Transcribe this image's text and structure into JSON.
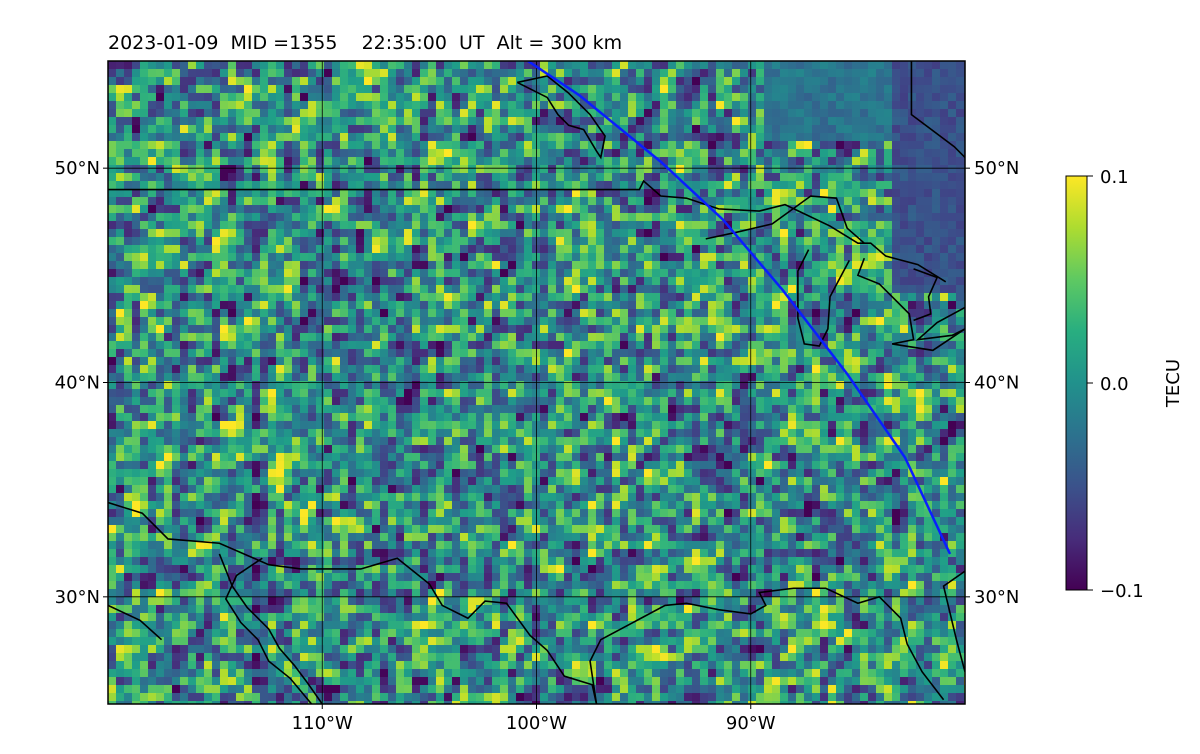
{
  "title": "2023-01-09  MID =1355    22:35:00  UT  Alt = 300 km",
  "map": {
    "lon_range": [
      -120,
      -80
    ],
    "lat_range": [
      25,
      55
    ],
    "grid": true,
    "colormap": "viridis",
    "coastline_color": "#000000",
    "track_color": "#0a1eff",
    "lon_ticks": [
      {
        "value": -110,
        "label": "110°W"
      },
      {
        "value": -100,
        "label": "100°W"
      },
      {
        "value": -90,
        "label": "90°W"
      }
    ],
    "lat_ticks": [
      {
        "value": 50,
        "label": "50°N"
      },
      {
        "value": 40,
        "label": "40°N"
      },
      {
        "value": 30,
        "label": "30°N"
      }
    ],
    "satellite_track": [
      [
        -100.4,
        55.0
      ],
      [
        -98.0,
        53.4
      ],
      [
        -94.2,
        50.3
      ],
      [
        -91.3,
        47.6
      ],
      [
        -88.5,
        44.3
      ],
      [
        -85.5,
        40.4
      ],
      [
        -82.8,
        36.5
      ],
      [
        -80.7,
        32.0
      ]
    ],
    "coastlines": [
      [
        [
          -120.0,
          49.0
        ],
        [
          -95.2,
          49.0
        ],
        [
          -95.0,
          49.4
        ],
        [
          -94.2,
          48.7
        ],
        [
          -93.0,
          48.6
        ],
        [
          -91.5,
          48.1
        ],
        [
          -89.6,
          48.0
        ],
        [
          -88.4,
          48.3
        ],
        [
          -86.3,
          47.3
        ],
        [
          -85.0,
          46.5
        ],
        [
          -84.4,
          46.5
        ],
        [
          -83.7,
          45.9
        ],
        [
          -82.2,
          45.5
        ],
        [
          -80.9,
          44.7
        ]
      ],
      [
        [
          -120.0,
          34.4
        ],
        [
          -118.4,
          33.9
        ],
        [
          -117.2,
          32.7
        ],
        [
          -116.0,
          32.6
        ],
        [
          -114.8,
          32.5
        ],
        [
          -112.5,
          31.5
        ],
        [
          -111.0,
          31.3
        ],
        [
          -108.2,
          31.3
        ],
        [
          -106.5,
          31.8
        ],
        [
          -105.0,
          30.6
        ],
        [
          -104.4,
          29.6
        ],
        [
          -103.2,
          29.0
        ],
        [
          -102.4,
          29.8
        ],
        [
          -101.4,
          29.7
        ],
        [
          -100.3,
          28.2
        ],
        [
          -99.5,
          27.5
        ],
        [
          -98.7,
          26.3
        ],
        [
          -97.4,
          25.9
        ],
        [
          -97.2,
          25.0
        ]
      ],
      [
        [
          -97.2,
          25.0
        ],
        [
          -97.5,
          27.0
        ],
        [
          -97.0,
          28.0
        ],
        [
          -95.5,
          28.8
        ],
        [
          -94.0,
          29.6
        ],
        [
          -93.0,
          29.7
        ],
        [
          -91.5,
          29.4
        ],
        [
          -90.0,
          29.2
        ],
        [
          -89.3,
          29.6
        ],
        [
          -89.6,
          30.2
        ],
        [
          -88.0,
          30.4
        ],
        [
          -86.5,
          30.4
        ],
        [
          -85.0,
          29.7
        ],
        [
          -84.0,
          30.0
        ],
        [
          -83.0,
          29.0
        ],
        [
          -82.7,
          27.8
        ],
        [
          -82.0,
          26.5
        ],
        [
          -81.0,
          25.2
        ]
      ],
      [
        [
          -80.0,
          31.2
        ],
        [
          -81.0,
          30.5
        ],
        [
          -80.4,
          28.0
        ],
        [
          -80.0,
          26.5
        ]
      ],
      [
        [
          -120.0,
          29.6
        ],
        [
          -118.5,
          28.9
        ],
        [
          -117.5,
          28.0
        ]
      ],
      [
        [
          -114.8,
          32.0
        ],
        [
          -114.2,
          30.5
        ],
        [
          -113.5,
          29.5
        ],
        [
          -112.5,
          28.5
        ],
        [
          -112.0,
          27.6
        ],
        [
          -111.3,
          26.8
        ],
        [
          -110.7,
          26.0
        ],
        [
          -110.0,
          25.0
        ]
      ],
      [
        [
          -112.8,
          31.8
        ],
        [
          -114.0,
          31.0
        ],
        [
          -114.5,
          29.9
        ],
        [
          -113.8,
          28.8
        ],
        [
          -113.0,
          28.0
        ],
        [
          -112.5,
          27.0
        ],
        [
          -111.5,
          26.2
        ],
        [
          -110.5,
          25.0
        ]
      ],
      [
        [
          -100.9,
          54.0
        ],
        [
          -100.5,
          53.8
        ],
        [
          -99.5,
          53.3
        ],
        [
          -99.0,
          52.5
        ],
        [
          -98.5,
          52.0
        ],
        [
          -97.8,
          51.8
        ],
        [
          -97.2,
          50.8
        ],
        [
          -97.0,
          50.5
        ],
        [
          -96.8,
          51.5
        ],
        [
          -97.5,
          52.5
        ],
        [
          -98.5,
          53.5
        ],
        [
          -99.5,
          54.3
        ],
        [
          -100.9,
          54.0
        ]
      ],
      [
        [
          -92.1,
          46.7
        ],
        [
          -90.7,
          47.0
        ],
        [
          -89.0,
          47.4
        ],
        [
          -87.2,
          48.7
        ],
        [
          -86.0,
          48.6
        ],
        [
          -85.5,
          47.2
        ],
        [
          -84.7,
          46.5
        ]
      ],
      [
        [
          -87.3,
          46.2
        ],
        [
          -87.8,
          45.2
        ],
        [
          -87.8,
          43.0
        ],
        [
          -87.5,
          41.8
        ],
        [
          -86.8,
          41.7
        ],
        [
          -86.4,
          42.5
        ],
        [
          -86.3,
          44.0
        ],
        [
          -85.4,
          45.7
        ]
      ],
      [
        [
          -84.7,
          45.8
        ],
        [
          -85.0,
          45.0
        ],
        [
          -84.0,
          44.6
        ],
        [
          -82.6,
          43.2
        ],
        [
          -82.4,
          42.0
        ],
        [
          -83.4,
          41.8
        ],
        [
          -81.5,
          41.5
        ],
        [
          -80.0,
          42.5
        ]
      ],
      [
        [
          -82.4,
          45.3
        ],
        [
          -81.3,
          44.9
        ],
        [
          -81.7,
          44.0
        ],
        [
          -81.6,
          43.2
        ],
        [
          -82.4,
          42.9
        ]
      ],
      [
        [
          -80.0,
          43.5
        ],
        [
          -81.3,
          42.8
        ],
        [
          -82.2,
          42.0
        ],
        [
          -80.6,
          42.2
        ],
        [
          -80.0,
          42.5
        ]
      ],
      [
        [
          -82.5,
          55.0
        ],
        [
          -82.5,
          52.5
        ],
        [
          -80.5,
          51.0
        ],
        [
          -80.0,
          50.5
        ]
      ]
    ]
  },
  "colorbar": {
    "label": "TECU",
    "min": -0.1,
    "max": 0.1,
    "ticks": [
      {
        "value": 0.1,
        "label": "0.1"
      },
      {
        "value": 0.0,
        "label": "0.0"
      },
      {
        "value": -0.1,
        "label": "−0.1"
      }
    ]
  }
}
